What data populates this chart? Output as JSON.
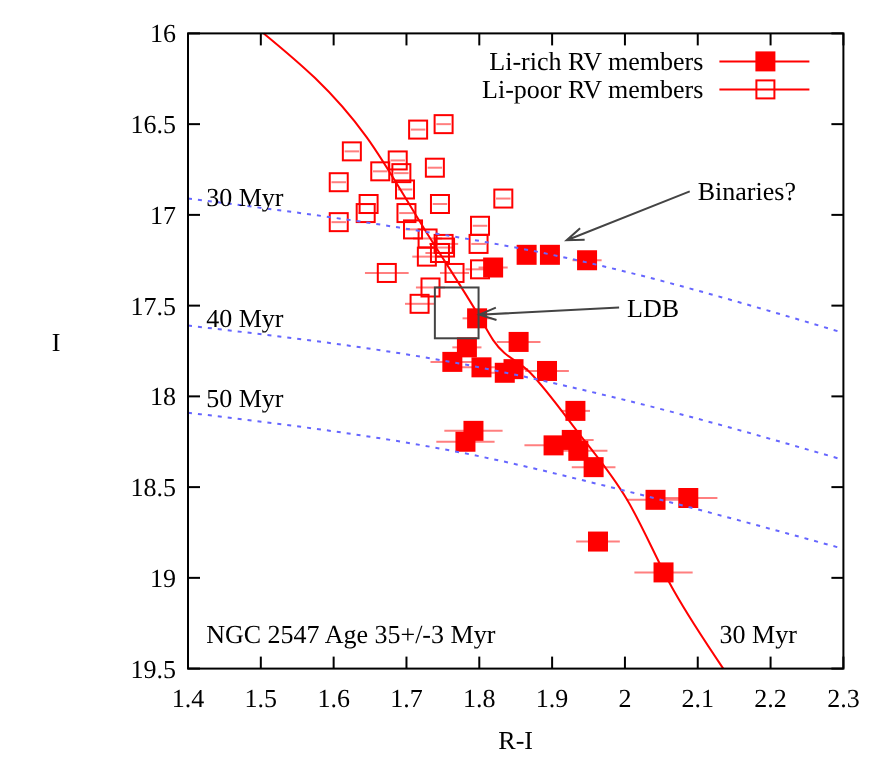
{
  "chart_data": {
    "type": "scatter",
    "xlabel": "R-I",
    "ylabel": "I",
    "xlim": [
      1.4,
      2.3
    ],
    "ylim": [
      19.5,
      16
    ],
    "xticks": [
      1.4,
      1.5,
      1.6,
      1.7,
      1.8,
      1.9,
      2,
      2.1,
      2.2,
      2.3
    ],
    "yticks": [
      16,
      16.5,
      17,
      17.5,
      18,
      18.5,
      19,
      19.5
    ],
    "grid": false,
    "legend": "top right",
    "marker": "square",
    "series": [
      {
        "name": "Li-rich RV members",
        "color": "#ff0000",
        "x": [
          1.763,
          1.783,
          1.803,
          1.835,
          1.847,
          1.893,
          1.854,
          1.932,
          1.792,
          1.781,
          1.902,
          1.927,
          1.936,
          1.957,
          2.042,
          2.087,
          1.963,
          2.053,
          1.865,
          1.897,
          1.948,
          1.819,
          1.797
        ],
        "values": [
          17.81,
          17.73,
          17.84,
          17.87,
          17.85,
          17.86,
          17.7,
          18.08,
          18.19,
          18.25,
          18.27,
          18.24,
          18.3,
          18.39,
          18.57,
          18.56,
          18.8,
          18.97,
          17.22,
          17.22,
          17.25,
          17.29,
          17.57
        ],
        "xerrors": [
          0.03,
          0.02,
          0.03,
          0.02,
          0.02,
          0.03,
          0.03,
          0.02,
          0.04,
          0.04,
          0.04,
          0.03,
          0.04,
          0.03,
          0.04,
          0.04,
          0.03,
          0.04,
          0.01,
          0.01,
          0.02,
          0.02,
          0.02
        ]
      },
      {
        "name": "Li-poor RV members",
        "color": "#ff0000",
        "x": [
          1.716,
          1.751,
          1.625,
          1.688,
          1.664,
          1.693,
          1.739,
          1.607,
          1.698,
          1.648,
          1.644,
          1.746,
          1.607,
          1.7,
          1.709,
          1.729,
          1.751,
          1.728,
          1.746,
          1.673,
          1.766,
          1.733,
          1.718,
          1.833,
          1.801,
          1.799,
          1.753,
          1.801
        ],
        "values": [
          16.53,
          16.5,
          16.65,
          16.7,
          16.76,
          16.77,
          16.74,
          16.82,
          16.86,
          16.94,
          16.99,
          16.94,
          17.04,
          16.99,
          17.08,
          17.13,
          17.16,
          17.23,
          17.21,
          17.32,
          17.32,
          17.4,
          17.49,
          16.91,
          17.06,
          17.16,
          17.18,
          17.3
        ],
        "xerrors": [
          0.01,
          0.01,
          0.01,
          0.01,
          0.01,
          0.01,
          0.01,
          0.01,
          0.01,
          0.01,
          0.01,
          0.01,
          0.01,
          0.01,
          0.01,
          0.02,
          0.02,
          0.02,
          0.02,
          0.03,
          0.02,
          0.02,
          0.02,
          0.01,
          0.01,
          0.01,
          0.01,
          0.02
        ]
      },
      {
        "type": "line",
        "color": "#ff0000",
        "marker": "none",
        "line_style": "solid",
        "x": [
          1.504,
          1.645,
          1.728,
          1.8,
          1.819,
          1.87,
          1.934,
          2.003,
          2.067,
          2.135
        ],
        "values": [
          16,
          16.57,
          17.1,
          17.56,
          17.69,
          17.87,
          18.19,
          18.57,
          19.07,
          19.5
        ]
      },
      {
        "type": "line",
        "color": "#6666ff",
        "marker": "none",
        "line_style": "dotted",
        "x": [
          1.4,
          1.69,
          1.9,
          2.3
        ],
        "values": [
          16.91,
          17.07,
          17.22,
          17.65
        ]
      },
      {
        "type": "line",
        "color": "#6666ff",
        "marker": "none",
        "line_style": "dotted",
        "x": [
          1.4,
          1.8,
          2,
          2.3
        ],
        "values": [
          17.61,
          17.84,
          18.02,
          18.35
        ]
      },
      {
        "type": "line",
        "color": "#6666ff",
        "marker": "none",
        "line_style": "dotted",
        "x": [
          1.4,
          1.8,
          2,
          2.3
        ],
        "values": [
          18.09,
          18.33,
          18.52,
          18.84
        ]
      }
    ],
    "annotations": [
      "30 Myr",
      "40 Myr",
      "50 Myr",
      "30 Myr",
      "NGC 2547 Age 35+/-3 Myr",
      {
        "text": "Binaries?",
        "x": 1.92,
        "y": 17.14
      },
      {
        "text": "LDB",
        "x": 1.8,
        "y": 17.55
      }
    ]
  }
}
